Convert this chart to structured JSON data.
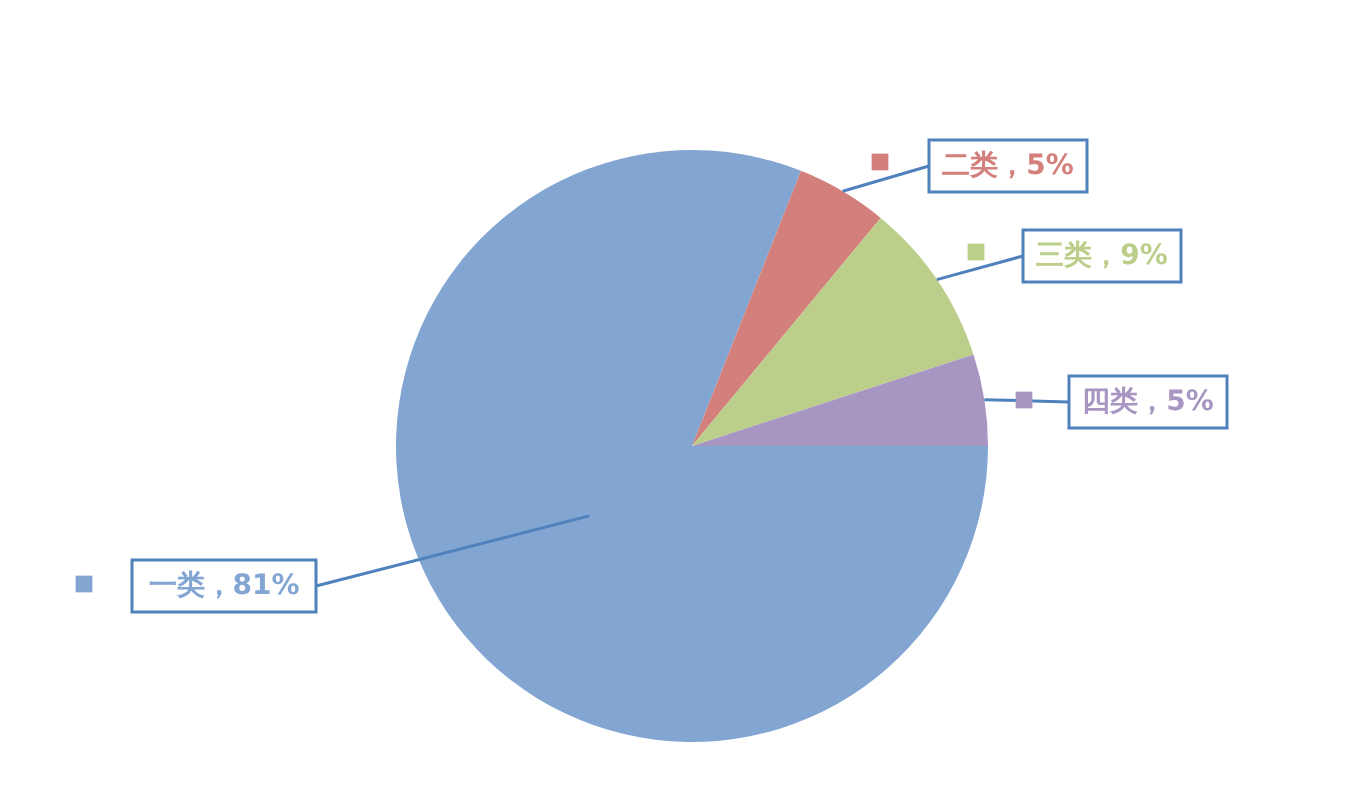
{
  "chart_data": {
    "type": "pie",
    "categories": [
      "一类",
      "二类",
      "三类",
      "四类"
    ],
    "values": [
      81,
      5,
      9,
      5
    ],
    "colors": [
      "#82a6d1",
      "#d3807c",
      "#bccf8a",
      "#a896c2"
    ],
    "value_labels": [
      "81%",
      "5%",
      "9%",
      "5%"
    ],
    "legend": "top left"
  }
}
